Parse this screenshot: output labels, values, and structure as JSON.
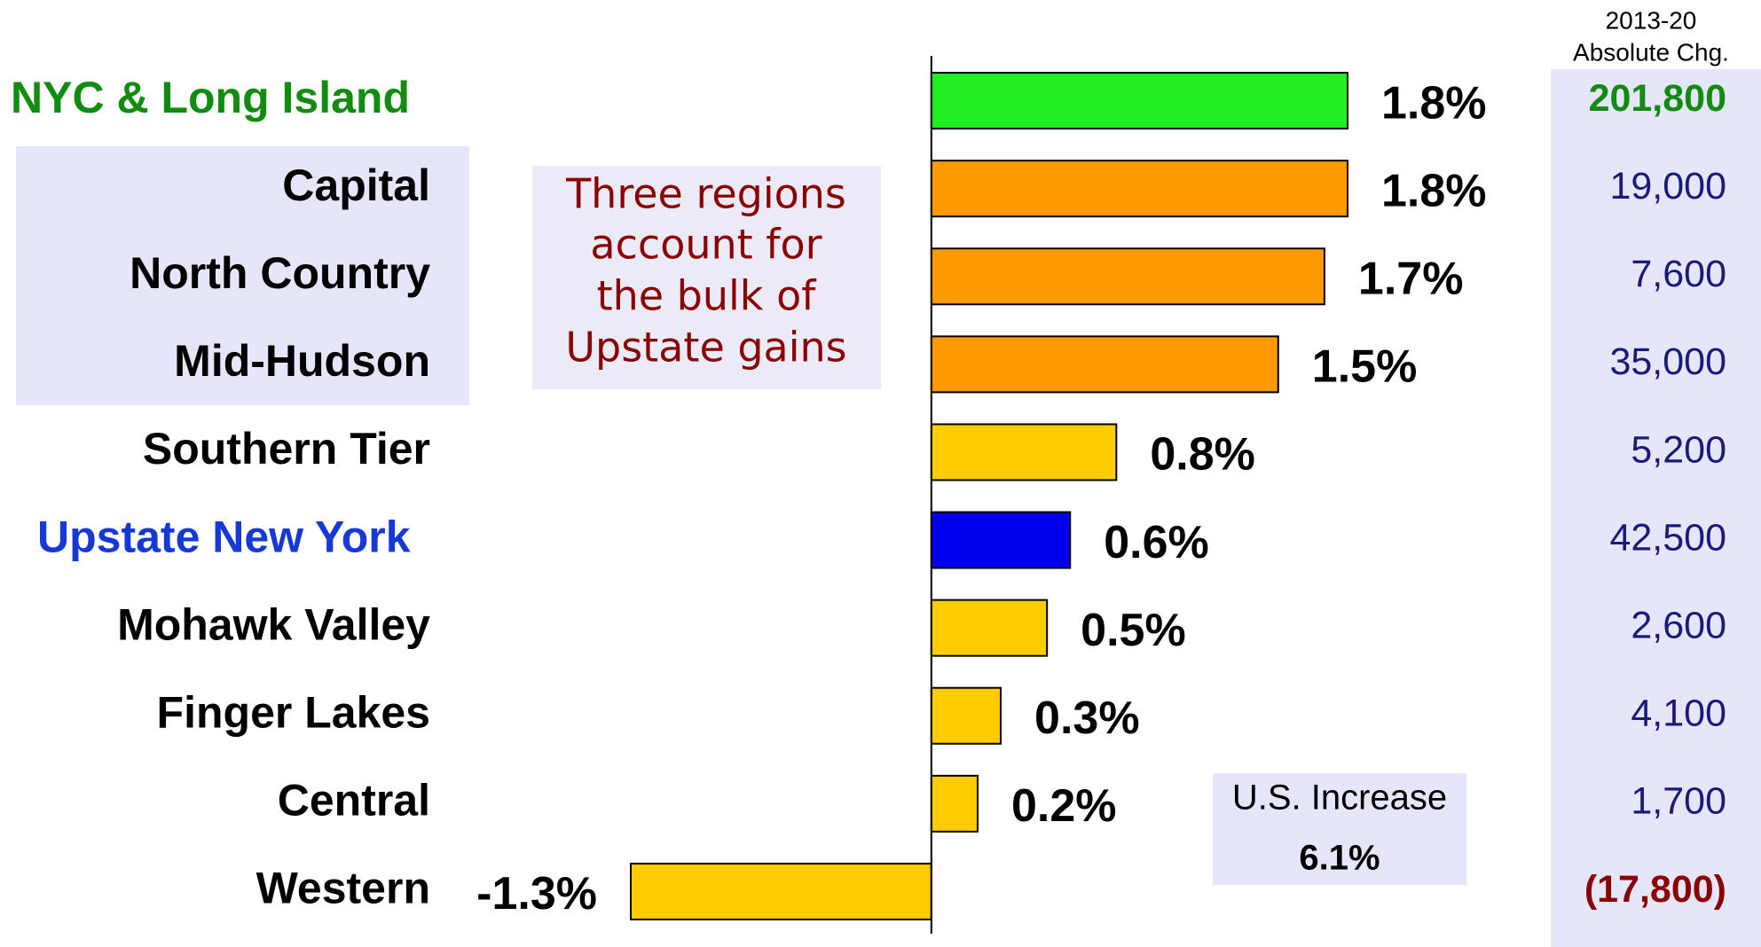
{
  "chart_data": {
    "type": "hbar",
    "categories": [
      "NYC & Long Island",
      "Capital",
      "North Country",
      "Mid-Hudson",
      "Southern Tier",
      "Upstate New York",
      "Mohawk Valley",
      "Finger Lakes",
      "Central",
      "Western"
    ],
    "label_colors": [
      "#118c11",
      "#000000",
      "#000000",
      "#000000",
      "#000000",
      "#1538d6",
      "#000000",
      "#000000",
      "#000000",
      "#000000"
    ],
    "values": [
      1.8,
      1.8,
      1.7,
      1.5,
      0.8,
      0.6,
      0.5,
      0.3,
      0.2,
      -1.3
    ],
    "value_labels": [
      "1.8%",
      "1.8%",
      "1.7%",
      "1.5%",
      "0.8%",
      "0.6%",
      "0.5%",
      "0.3%",
      "0.2%",
      "-1.3%"
    ],
    "colors": [
      "#22ee22",
      "#ff9900",
      "#ff9900",
      "#ff9900",
      "#ffcc00",
      "#0000ee",
      "#ffcc00",
      "#ffcc00",
      "#ffcc00",
      "#ffcc00"
    ],
    "absolute_change": {
      "header": [
        "2013-20",
        "Absolute Chg."
      ],
      "values": [
        201800,
        19000,
        7600,
        35000,
        5200,
        42500,
        2600,
        4100,
        1700,
        -17800
      ],
      "value_labels": [
        "201,800",
        "19,000",
        "7,600",
        "35,000",
        "5,200",
        "42,500",
        "2,600",
        "4,100",
        "1,700",
        "(17,800)"
      ],
      "colors": [
        "#118c11",
        "#1a1a7a",
        "#1a1a7a",
        "#1a1a7a",
        "#1a1a7a",
        "#1a1a7a",
        "#1a1a7a",
        "#1a1a7a",
        "#1a1a7a",
        "#8b0000"
      ],
      "bold": [
        true,
        false,
        false,
        false,
        false,
        false,
        false,
        false,
        false,
        true
      ]
    },
    "annotation": [
      "Three regions",
      "account for",
      "the bulk of",
      "Upstate gains"
    ],
    "us_increase": {
      "label": "U.S. Increase",
      "value": 6.1,
      "value_label": "6.1%"
    }
  }
}
